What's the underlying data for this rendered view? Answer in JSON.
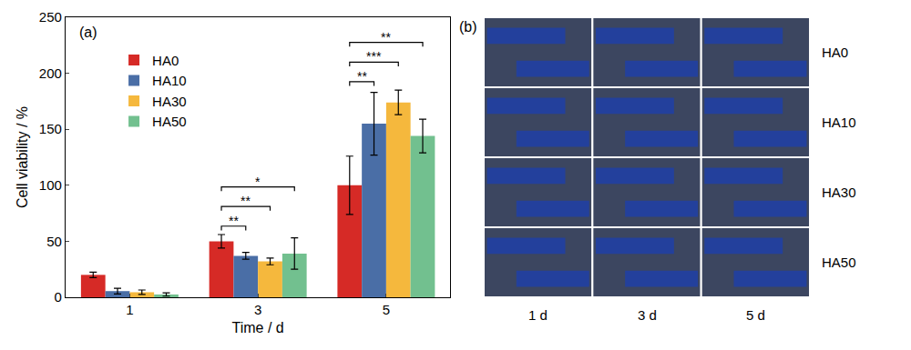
{
  "chart_data": {
    "type": "bar",
    "annotation": "(a)",
    "x_label": "Time / d",
    "y_label": "Cell viability / %",
    "categories": [
      "1",
      "3",
      "5"
    ],
    "series": [
      {
        "name": "HA0",
        "color": "#d62a26",
        "values": [
          20,
          50,
          100
        ],
        "errors": [
          2.5,
          6,
          26
        ]
      },
      {
        "name": "HA10",
        "color": "#4a6ea6",
        "values": [
          5.5,
          37,
          155
        ],
        "errors": [
          2.5,
          3,
          28
        ]
      },
      {
        "name": "HA30",
        "color": "#f5b83d",
        "values": [
          4.5,
          32,
          174
        ],
        "errors": [
          2,
          3,
          11
        ]
      },
      {
        "name": "HA50",
        "color": "#72c08f",
        "values": [
          2.5,
          39,
          144
        ],
        "errors": [
          1.5,
          14,
          15
        ]
      }
    ],
    "ylim": [
      0,
      250
    ],
    "yticks": [
      0,
      50,
      100,
      150,
      200,
      250
    ],
    "legend": "upper left",
    "significance": [
      {
        "category": "3",
        "groups": [
          "HA0",
          "HA10"
        ],
        "label": "**"
      },
      {
        "category": "3",
        "groups": [
          "HA0",
          "HA30"
        ],
        "label": "**"
      },
      {
        "category": "3",
        "groups": [
          "HA0",
          "HA50"
        ],
        "label": "*"
      },
      {
        "category": "5",
        "groups": [
          "HA0",
          "HA10"
        ],
        "label": "**"
      },
      {
        "category": "5",
        "groups": [
          "HA0",
          "HA30"
        ],
        "label": "***"
      },
      {
        "category": "5",
        "groups": [
          "HA0",
          "HA50"
        ],
        "label": "**"
      }
    ]
  },
  "panel_b": {
    "label": "(b)",
    "rows": [
      "HA0",
      "HA10",
      "HA30",
      "HA50"
    ],
    "columns": [
      "1 d",
      "3 d",
      "5 d"
    ]
  }
}
